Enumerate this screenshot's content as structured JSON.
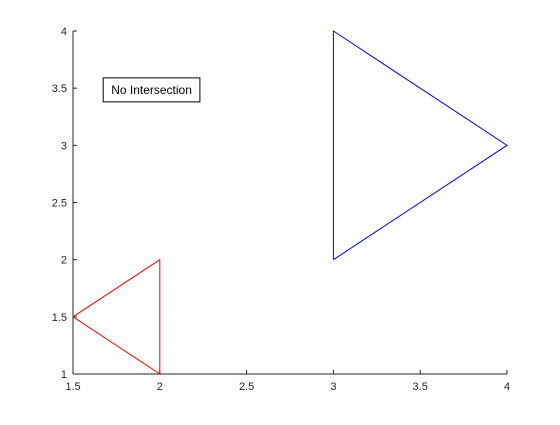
{
  "chart_data": {
    "type": "line",
    "title": "",
    "xlabel": "",
    "ylabel": "",
    "xlim": [
      1.5,
      4
    ],
    "ylim": [
      1,
      4
    ],
    "xticks": [
      "1.5",
      "2",
      "2.5",
      "3",
      "3.5",
      "4"
    ],
    "yticks": [
      "1",
      "1.5",
      "2",
      "2.5",
      "3",
      "3.5",
      "4"
    ],
    "grid": false,
    "box": false,
    "series": [
      {
        "color": "#ff0000",
        "x": [
          1.5,
          2,
          2,
          1.5
        ],
        "y": [
          1.5,
          1,
          2,
          1.5
        ]
      },
      {
        "color": "#0000ff",
        "x": [
          3,
          4,
          3,
          3
        ],
        "y": [
          2,
          3,
          4,
          2
        ]
      }
    ],
    "annotations": [
      {
        "text": "No Intersection",
        "x": 1.72,
        "y": 3.45
      }
    ]
  }
}
